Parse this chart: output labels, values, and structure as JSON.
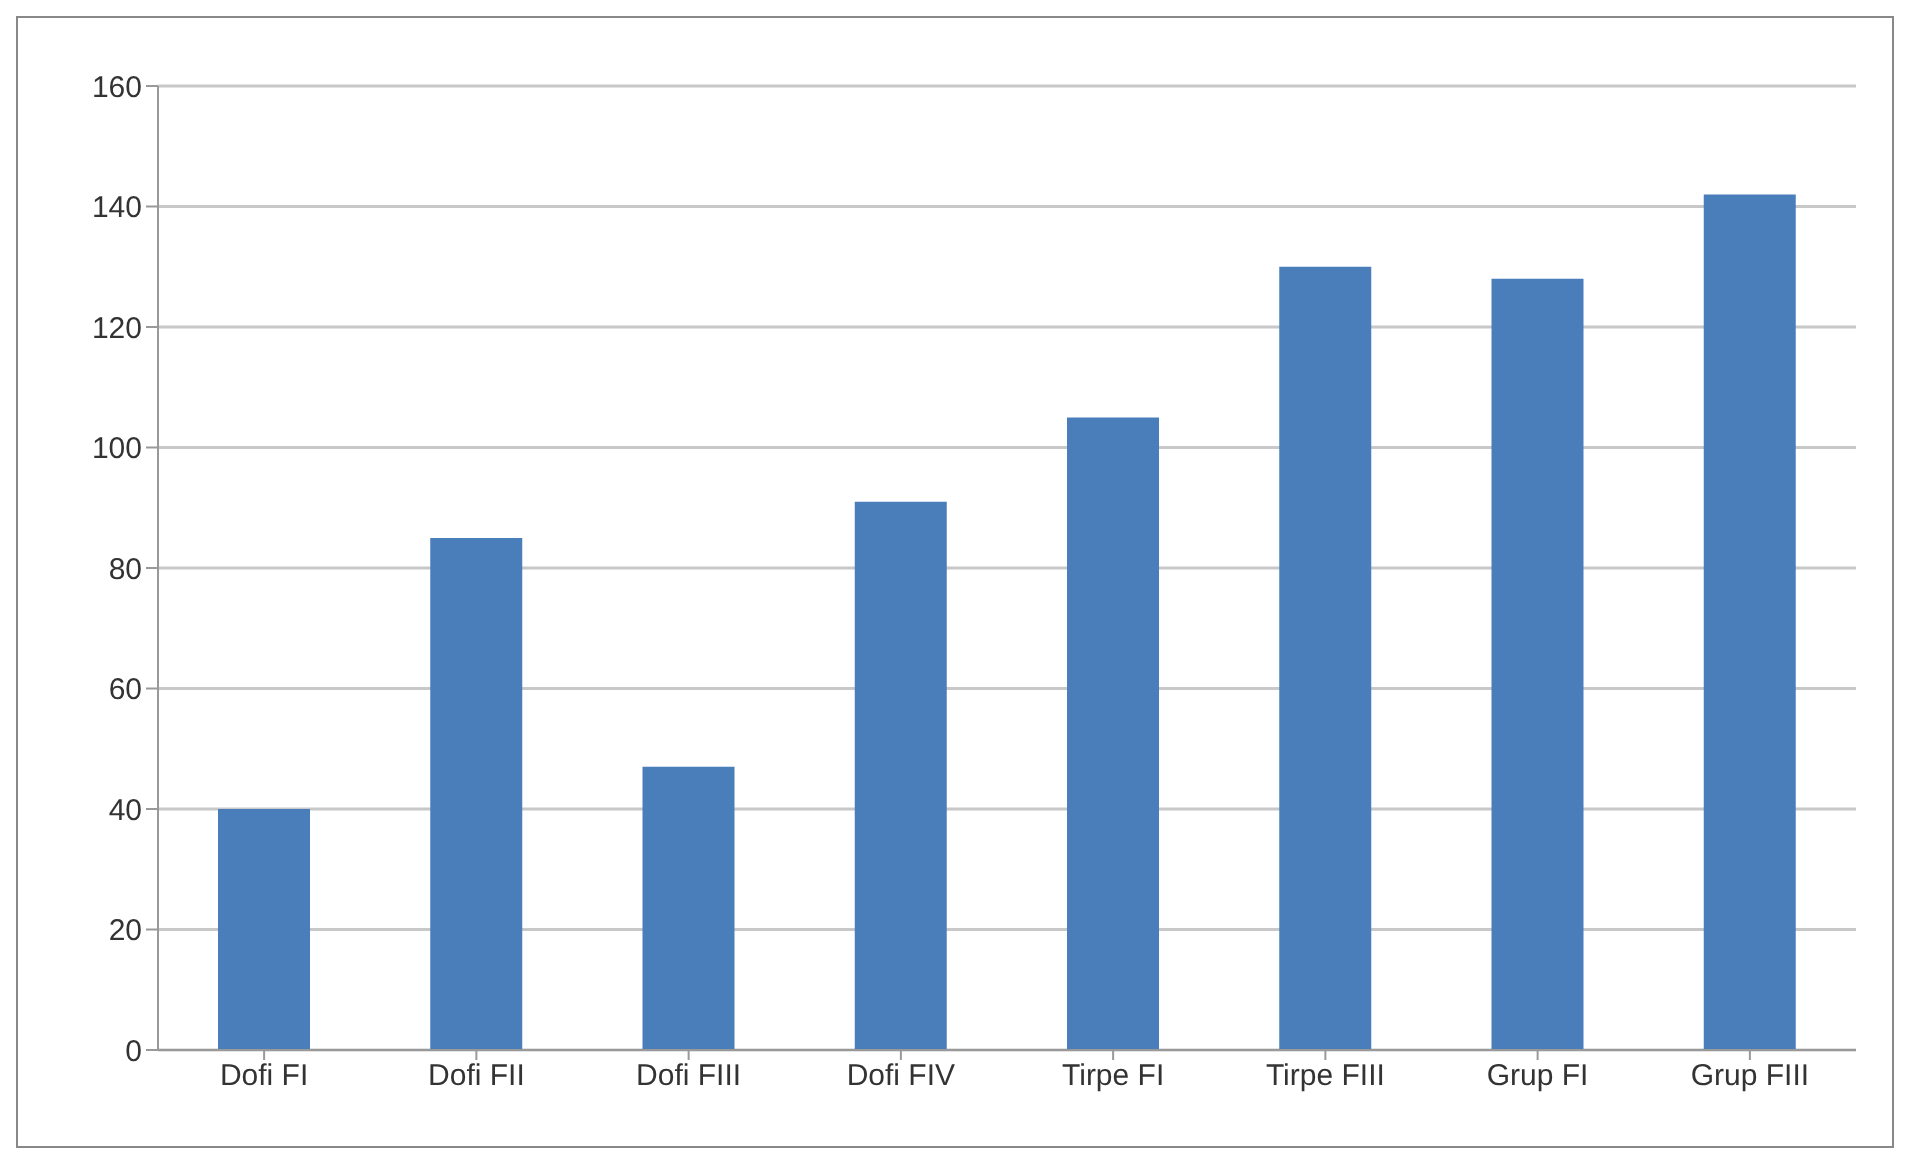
{
  "chart_data": {
    "type": "bar",
    "categories": [
      "Dofi FI",
      "Dofi FII",
      "Dofi FIII",
      "Dofi FIV",
      "Tirpe FI",
      "Tirpe FIII",
      "Grup FI",
      "Grup FIII"
    ],
    "values": [
      40,
      85,
      47,
      91,
      105,
      130,
      128,
      142
    ],
    "color": "#4a7ebb",
    "ylim": [
      0,
      160
    ],
    "yticks": [
      0,
      20,
      40,
      60,
      80,
      100,
      120,
      140,
      160
    ],
    "grid": "y",
    "legend": false
  }
}
